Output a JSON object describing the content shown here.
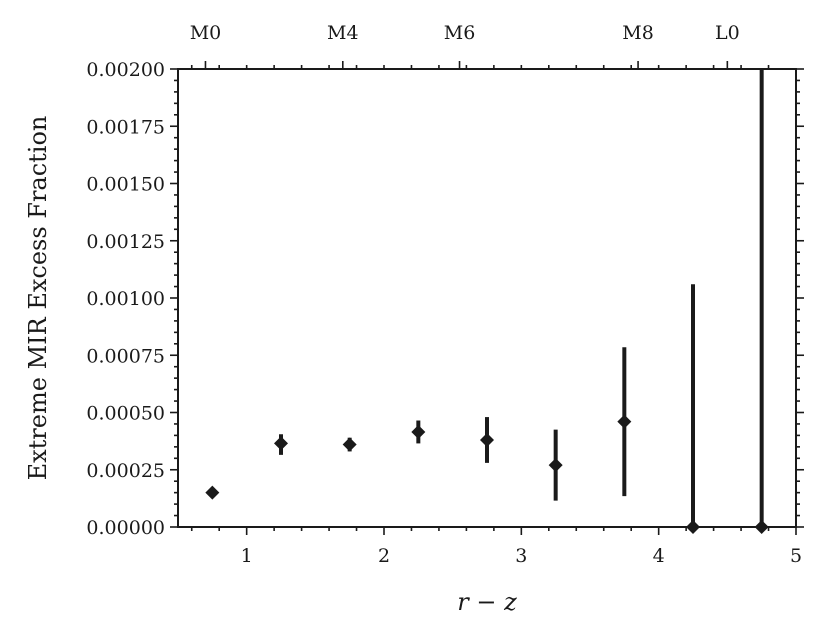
{
  "chart_data": {
    "type": "scatter",
    "title": "",
    "xlabel": "r − z",
    "ylabel": "Extreme MIR Excess Fraction",
    "xlim": [
      0.5,
      5.0
    ],
    "ylim": [
      0.0,
      0.002
    ],
    "x_ticks": [
      1,
      2,
      3,
      4,
      5
    ],
    "x_tick_labels": [
      "1",
      "2",
      "3",
      "4",
      "5"
    ],
    "y_ticks": [
      0.0,
      0.00025,
      0.0005,
      0.00075,
      0.001,
      0.00125,
      0.0015,
      0.00175,
      0.002
    ],
    "y_tick_labels": [
      "0.00000",
      "0.00025",
      "0.00050",
      "0.00075",
      "0.00100",
      "0.00125",
      "0.00150",
      "0.00175",
      "0.00200"
    ],
    "secondary_x_axis": {
      "position": "top",
      "ticks": [
        0.7,
        1.7,
        2.55,
        3.85,
        4.5
      ],
      "labels": [
        "M0",
        "M4",
        "M6",
        "M8",
        "L0"
      ]
    },
    "grid": false,
    "series": [
      {
        "marker": "diamond",
        "color": "#1a1a1a",
        "x": [
          0.75,
          1.25,
          1.75,
          2.25,
          2.75,
          3.25,
          3.75,
          4.25,
          4.75
        ],
        "y": [
          0.00015,
          0.000365,
          0.00036,
          0.000415,
          0.00038,
          0.00027,
          0.00046,
          0.0,
          0.0
        ],
        "y_err_low": [
          1e-05,
          5e-05,
          3e-05,
          5e-05,
          0.0001,
          0.000155,
          0.000325,
          0.0,
          0.0
        ],
        "y_err_high": [
          1e-05,
          4e-05,
          3e-05,
          5e-05,
          0.0001,
          0.000155,
          0.000325,
          0.00106,
          0.00203
        ]
      }
    ]
  }
}
